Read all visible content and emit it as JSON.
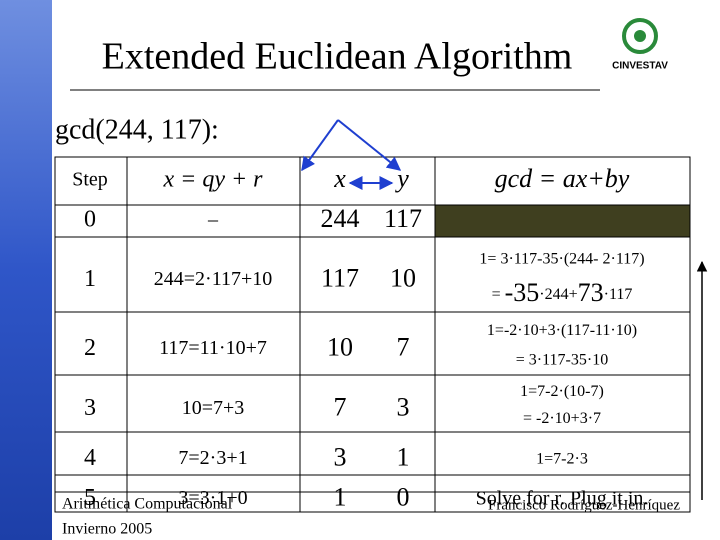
{
  "title": "Extended Euclidean Algorithm",
  "logo": "CINVESTAV",
  "heading": "gcd(244, 117):",
  "table": {
    "header": [
      "Step",
      "x = qy + r",
      "x",
      "y",
      "gcd = ax+by"
    ],
    "rows": [
      {
        "step": "0",
        "eq": "–",
        "x": "244",
        "y": "117"
      },
      {
        "step": "1",
        "eq": "244=2·117+10",
        "x": "117",
        "y": "10",
        "gcd": [
          [
            "1= 3·117-35·(244- 2·117)"
          ],
          [
            "= ",
            "-35",
            "·244+",
            "73",
            "·117"
          ]
        ]
      },
      {
        "step": "2",
        "eq": "117=11·10+7",
        "x": "10",
        "y": "7",
        "gcd": [
          [
            "1=-2·10+3·(117-11·10)"
          ],
          [
            "= 3·117-35·10"
          ]
        ]
      },
      {
        "step": "3",
        "eq": "10=7+3",
        "x": "7",
        "y": "3",
        "gcd": [
          [
            "1=7-2·(10-7)"
          ],
          [
            "= -2·10+3·7"
          ]
        ]
      },
      {
        "step": "4",
        "eq": "7=2·3+1",
        "x": "3",
        "y": "1",
        "gcd": [
          [
            "1=7-2·3"
          ]
        ]
      },
      {
        "step": "5",
        "eq": "3=3·1+0",
        "x": "1",
        "y": "0",
        "gcd": [
          [
            "Solve for r. Plug it in."
          ]
        ]
      }
    ]
  },
  "footer": {
    "course": "Aritmética Computacional",
    "term": "Invierno 2005",
    "author": "Francisco Rodríguez-Henríquez"
  }
}
